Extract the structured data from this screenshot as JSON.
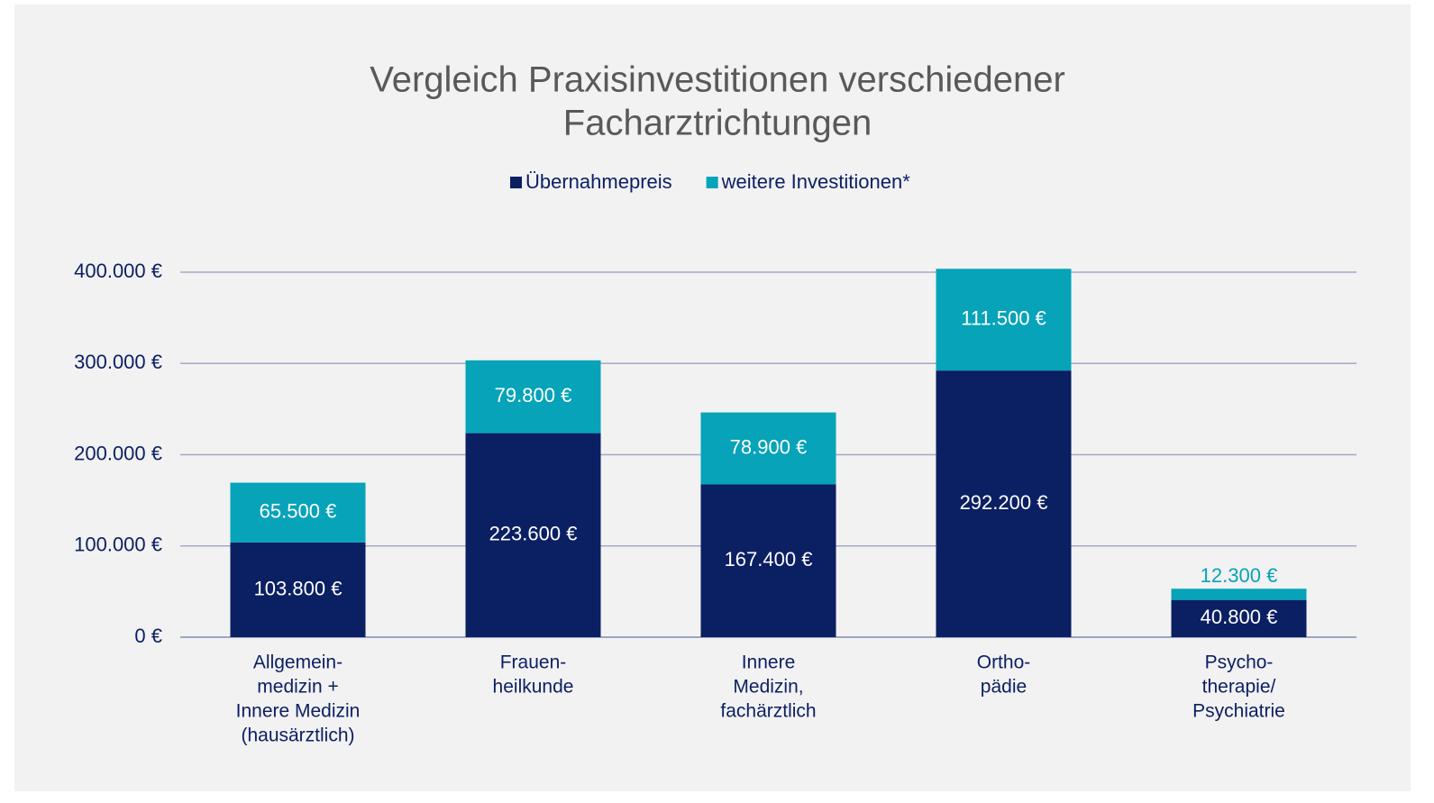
{
  "chart_data": {
    "type": "stacked_bar",
    "title": [
      "Vergleich Praxisinvestitionen verschiedener",
      "Facharztrichtungen"
    ],
    "categories": [
      [
        "Allgemein-",
        "medizin +",
        "Innere Medizin",
        "(hausärztlich)"
      ],
      [
        "Frauen-",
        "heilkunde"
      ],
      [
        "Innere",
        "Medizin,",
        "fachärztlich"
      ],
      [
        "Ortho-",
        "pädie"
      ],
      [
        "Psycho-",
        "therapie/",
        "Psychiatrie"
      ]
    ],
    "series": [
      {
        "name": "Übernahmepreis",
        "color": "#0b1f63",
        "values": [
          103800,
          223600,
          167400,
          292200,
          40800
        ],
        "value_labels": [
          "103.800 €",
          "223.600 €",
          "167.400 €",
          "292.200 €",
          "40.800 €"
        ]
      },
      {
        "name": "weitere Investitionen*",
        "color": "#07a3b9",
        "values": [
          65500,
          79800,
          78900,
          111500,
          12300
        ],
        "value_labels": [
          "65.500 €",
          "79.800 €",
          "78.900 €",
          "111.500 €",
          "12.300 €"
        ]
      }
    ],
    "ylim": [
      0,
      400000
    ],
    "yticks": [
      {
        "value": 0,
        "label": "0 €"
      },
      {
        "value": 100000,
        "label": "100.000 €"
      },
      {
        "value": 200000,
        "label": "200.000 €"
      },
      {
        "value": 300000,
        "label": "300.000 €"
      },
      {
        "value": 400000,
        "label": "400.000 €"
      }
    ],
    "grid": true,
    "legend": "top"
  }
}
